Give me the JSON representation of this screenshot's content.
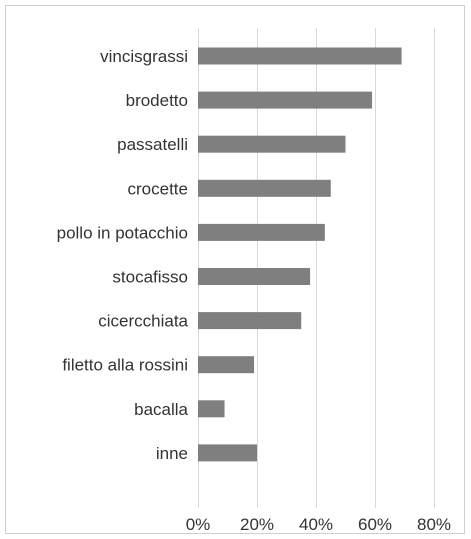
{
  "chart_data": {
    "type": "bar",
    "orientation": "horizontal",
    "categories": [
      "vincisgrassi",
      "brodetto",
      "passatelli",
      "crocette",
      "pollo in potacchio",
      "stocafisso",
      "cicercchiata",
      "filetto alla rossini",
      "bacalla",
      "inne"
    ],
    "values": [
      69,
      59,
      50,
      45,
      43,
      38,
      35,
      19,
      9,
      20
    ],
    "value_unit": "%",
    "xlim": [
      0,
      80
    ],
    "xticks": [
      0,
      20,
      40,
      60,
      80
    ],
    "xtick_labels": [
      "0%",
      "20%",
      "40%",
      "60%",
      "80%"
    ],
    "grid": "vertical",
    "legend": "none",
    "title": "",
    "xlabel": "",
    "ylabel": "",
    "colors": {
      "bar": "#7f7f7f",
      "grid": "#d9d9d9",
      "text": "#333333",
      "border": "#cfcfcf"
    }
  }
}
